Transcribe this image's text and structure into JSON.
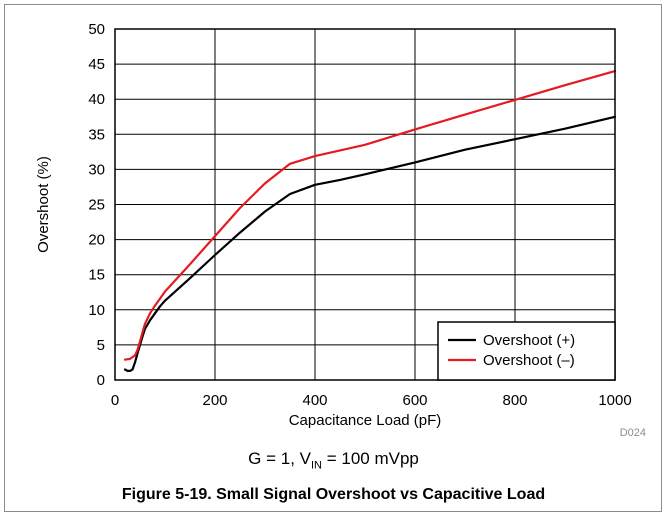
{
  "chart_data": {
    "type": "line",
    "xlabel": "Capacitance Load (pF)",
    "ylabel": "Overshoot (%)",
    "xlim": [
      0,
      1000
    ],
    "ylim": [
      0,
      50
    ],
    "xticks": [
      0,
      200,
      400,
      600,
      800,
      1000
    ],
    "yticks": [
      0,
      5,
      10,
      15,
      20,
      25,
      30,
      35,
      40,
      45,
      50
    ],
    "grid": true,
    "legend": "bottom-right",
    "series": [
      {
        "name": "Overshoot (+)",
        "color": "#000000",
        "x": [
          20,
          25,
          30,
          35,
          40,
          45,
          50,
          55,
          60,
          70,
          80,
          90,
          100,
          150,
          200,
          250,
          300,
          350,
          400,
          450,
          500,
          600,
          700,
          800,
          900,
          1000
        ],
        "y": [
          1.5,
          1.3,
          1.3,
          1.5,
          2.5,
          3.8,
          5.0,
          6.2,
          7.3,
          8.5,
          9.5,
          10.5,
          11.3,
          14.5,
          17.8,
          21.0,
          24.0,
          26.5,
          27.8,
          28.5,
          29.3,
          31.0,
          32.8,
          34.3,
          35.8,
          37.5
        ]
      },
      {
        "name": "Overshoot (–)",
        "color": "#e31b23",
        "x": [
          20,
          30,
          40,
          45,
          50,
          55,
          60,
          70,
          80,
          90,
          100,
          150,
          200,
          250,
          300,
          350,
          400,
          450,
          500,
          600,
          700,
          800,
          900,
          1000
        ],
        "y": [
          2.9,
          3.0,
          3.5,
          4.3,
          5.5,
          6.8,
          8.0,
          9.5,
          10.6,
          11.6,
          12.6,
          16.5,
          20.5,
          24.5,
          28.0,
          30.8,
          31.9,
          32.7,
          33.5,
          35.7,
          37.8,
          39.9,
          42.0,
          44.0
        ]
      }
    ],
    "figure_code": "D024",
    "condition": {
      "prefix": "G = 1, V",
      "subscript": "IN",
      "suffix": " = 100 mVpp"
    },
    "caption": "Figure 5-19. Small Signal Overshoot vs Capacitive Load"
  }
}
